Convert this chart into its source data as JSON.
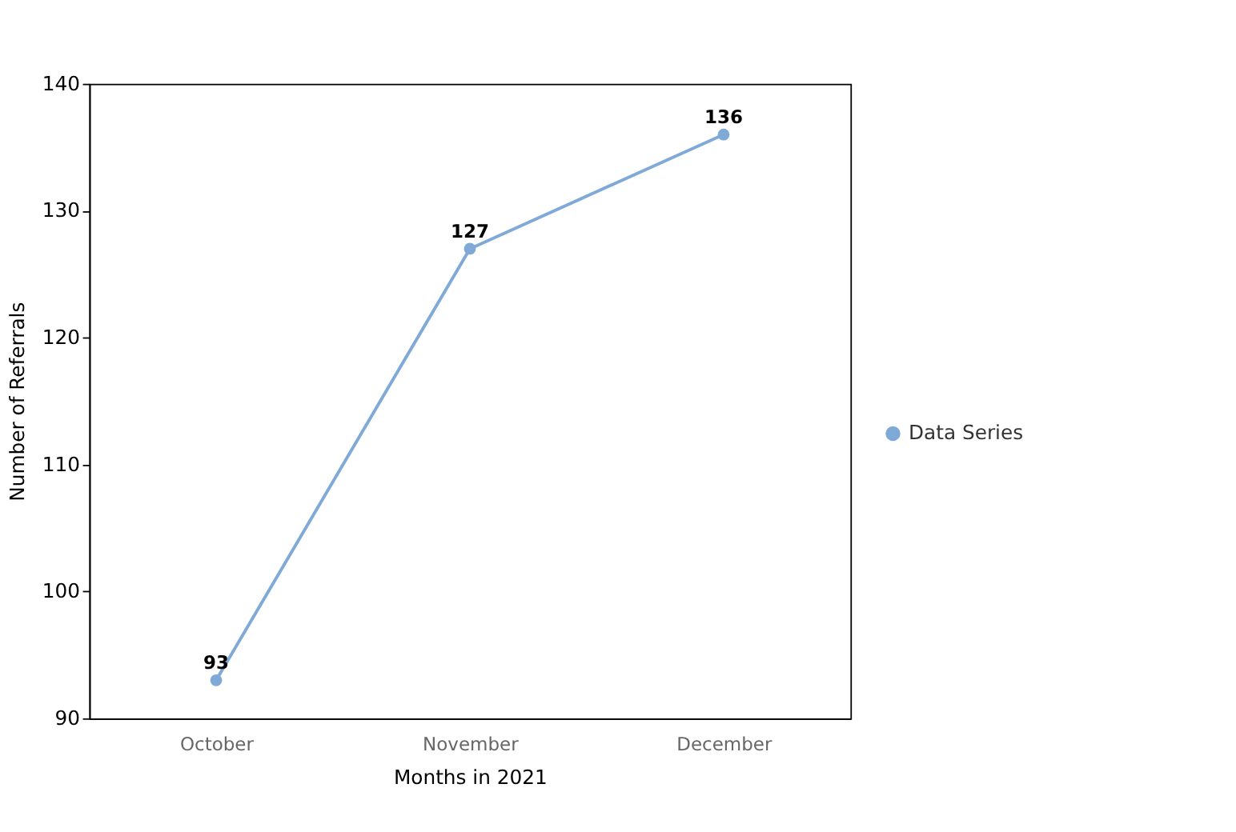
{
  "chart_data": {
    "type": "line",
    "xlabel": "Months in 2021",
    "ylabel": "Number of Referrals",
    "categories": [
      "October",
      "November",
      "December"
    ],
    "series": [
      {
        "name": "Data Series",
        "color": "#7fa9d6",
        "values": [
          93,
          127,
          136
        ]
      }
    ],
    "ylim": [
      90,
      140
    ],
    "yticks": [
      90,
      100,
      110,
      120,
      130,
      140
    ],
    "data_labels": true,
    "marker": "circle",
    "line_style": "solid",
    "grid": false,
    "legend": "right"
  }
}
